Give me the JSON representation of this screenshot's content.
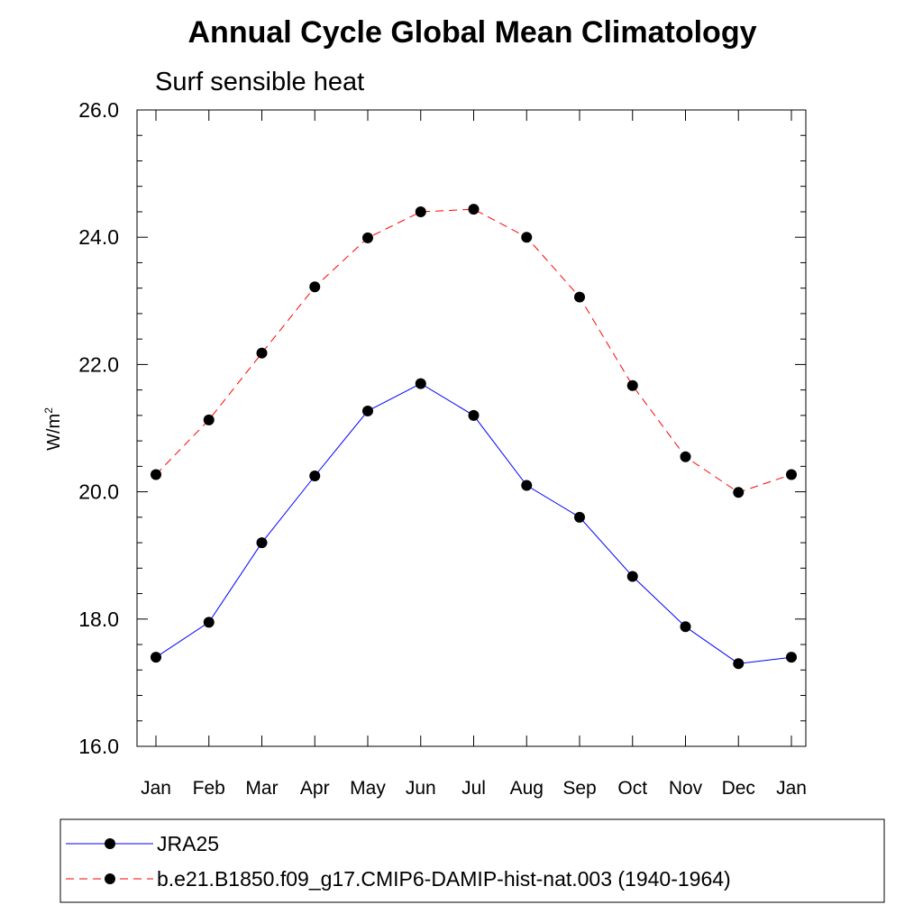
{
  "chart_data": {
    "type": "line",
    "title": "Annual Cycle Global Mean Climatology",
    "subtitle": "Surf sensible heat",
    "ylabel": "W/m",
    "ylabel_superscript": "2",
    "xlabel": "",
    "ylim": [
      16.0,
      26.0
    ],
    "yticks": [
      "16.0",
      "18.0",
      "20.0",
      "22.0",
      "24.0",
      "26.0"
    ],
    "categories": [
      "Jan",
      "Feb",
      "Mar",
      "Apr",
      "May",
      "Jun",
      "Jul",
      "Aug",
      "Sep",
      "Oct",
      "Nov",
      "Dec",
      "Jan"
    ],
    "series": [
      {
        "name": "JRA25",
        "color": "#0000ff",
        "dash": "solid",
        "values": [
          17.4,
          17.95,
          19.2,
          20.25,
          21.27,
          21.7,
          21.2,
          20.1,
          19.6,
          18.67,
          17.88,
          17.3,
          17.4
        ]
      },
      {
        "name": "b.e21.B1850.f09_g17.CMIP6-DAMIP-hist-nat.003 (1940-1964)",
        "color": "#ff0000",
        "dash": "dashed",
        "values": [
          20.27,
          21.13,
          22.18,
          23.22,
          23.99,
          24.4,
          24.44,
          24.0,
          23.06,
          21.67,
          20.55,
          19.99,
          20.27
        ]
      }
    ],
    "grid": false,
    "legend_position": "bottom"
  }
}
